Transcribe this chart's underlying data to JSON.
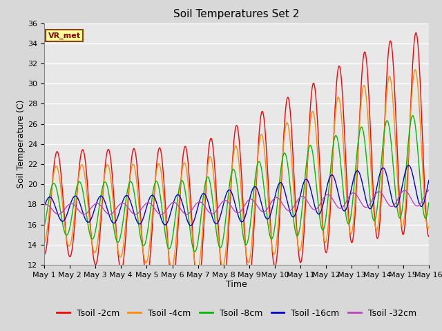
{
  "title": "Soil Temperatures Set 2",
  "xlabel": "Time",
  "ylabel": "Soil Temperature (C)",
  "ylim": [
    12,
    36
  ],
  "yticks": [
    12,
    14,
    16,
    18,
    20,
    22,
    24,
    26,
    28,
    30,
    32,
    34,
    36
  ],
  "xtick_labels": [
    "May 1",
    "May 2",
    "May 3",
    "May 4",
    "May 5",
    "May 6",
    "May 7",
    "May 8",
    "May 9",
    "May 10",
    "May 11",
    "May 12",
    "May 13",
    "May 14",
    "May 15",
    "May 16"
  ],
  "annotation_text": "VR_met",
  "annotation_bg": "#ffff99",
  "annotation_border": "#8B4513",
  "series_colors": [
    "#ff0000",
    "#ff8c00",
    "#00bb00",
    "#0000cc",
    "#bb44bb"
  ],
  "series_labels": [
    "Tsoil -2cm",
    "Tsoil -4cm",
    "Tsoil -8cm",
    "Tsoil -16cm",
    "Tsoil -32cm"
  ],
  "background_color": "#e8e8e8",
  "grid_color": "#ffffff",
  "title_fontsize": 11,
  "axis_fontsize": 9,
  "tick_fontsize": 8,
  "legend_fontsize": 9
}
